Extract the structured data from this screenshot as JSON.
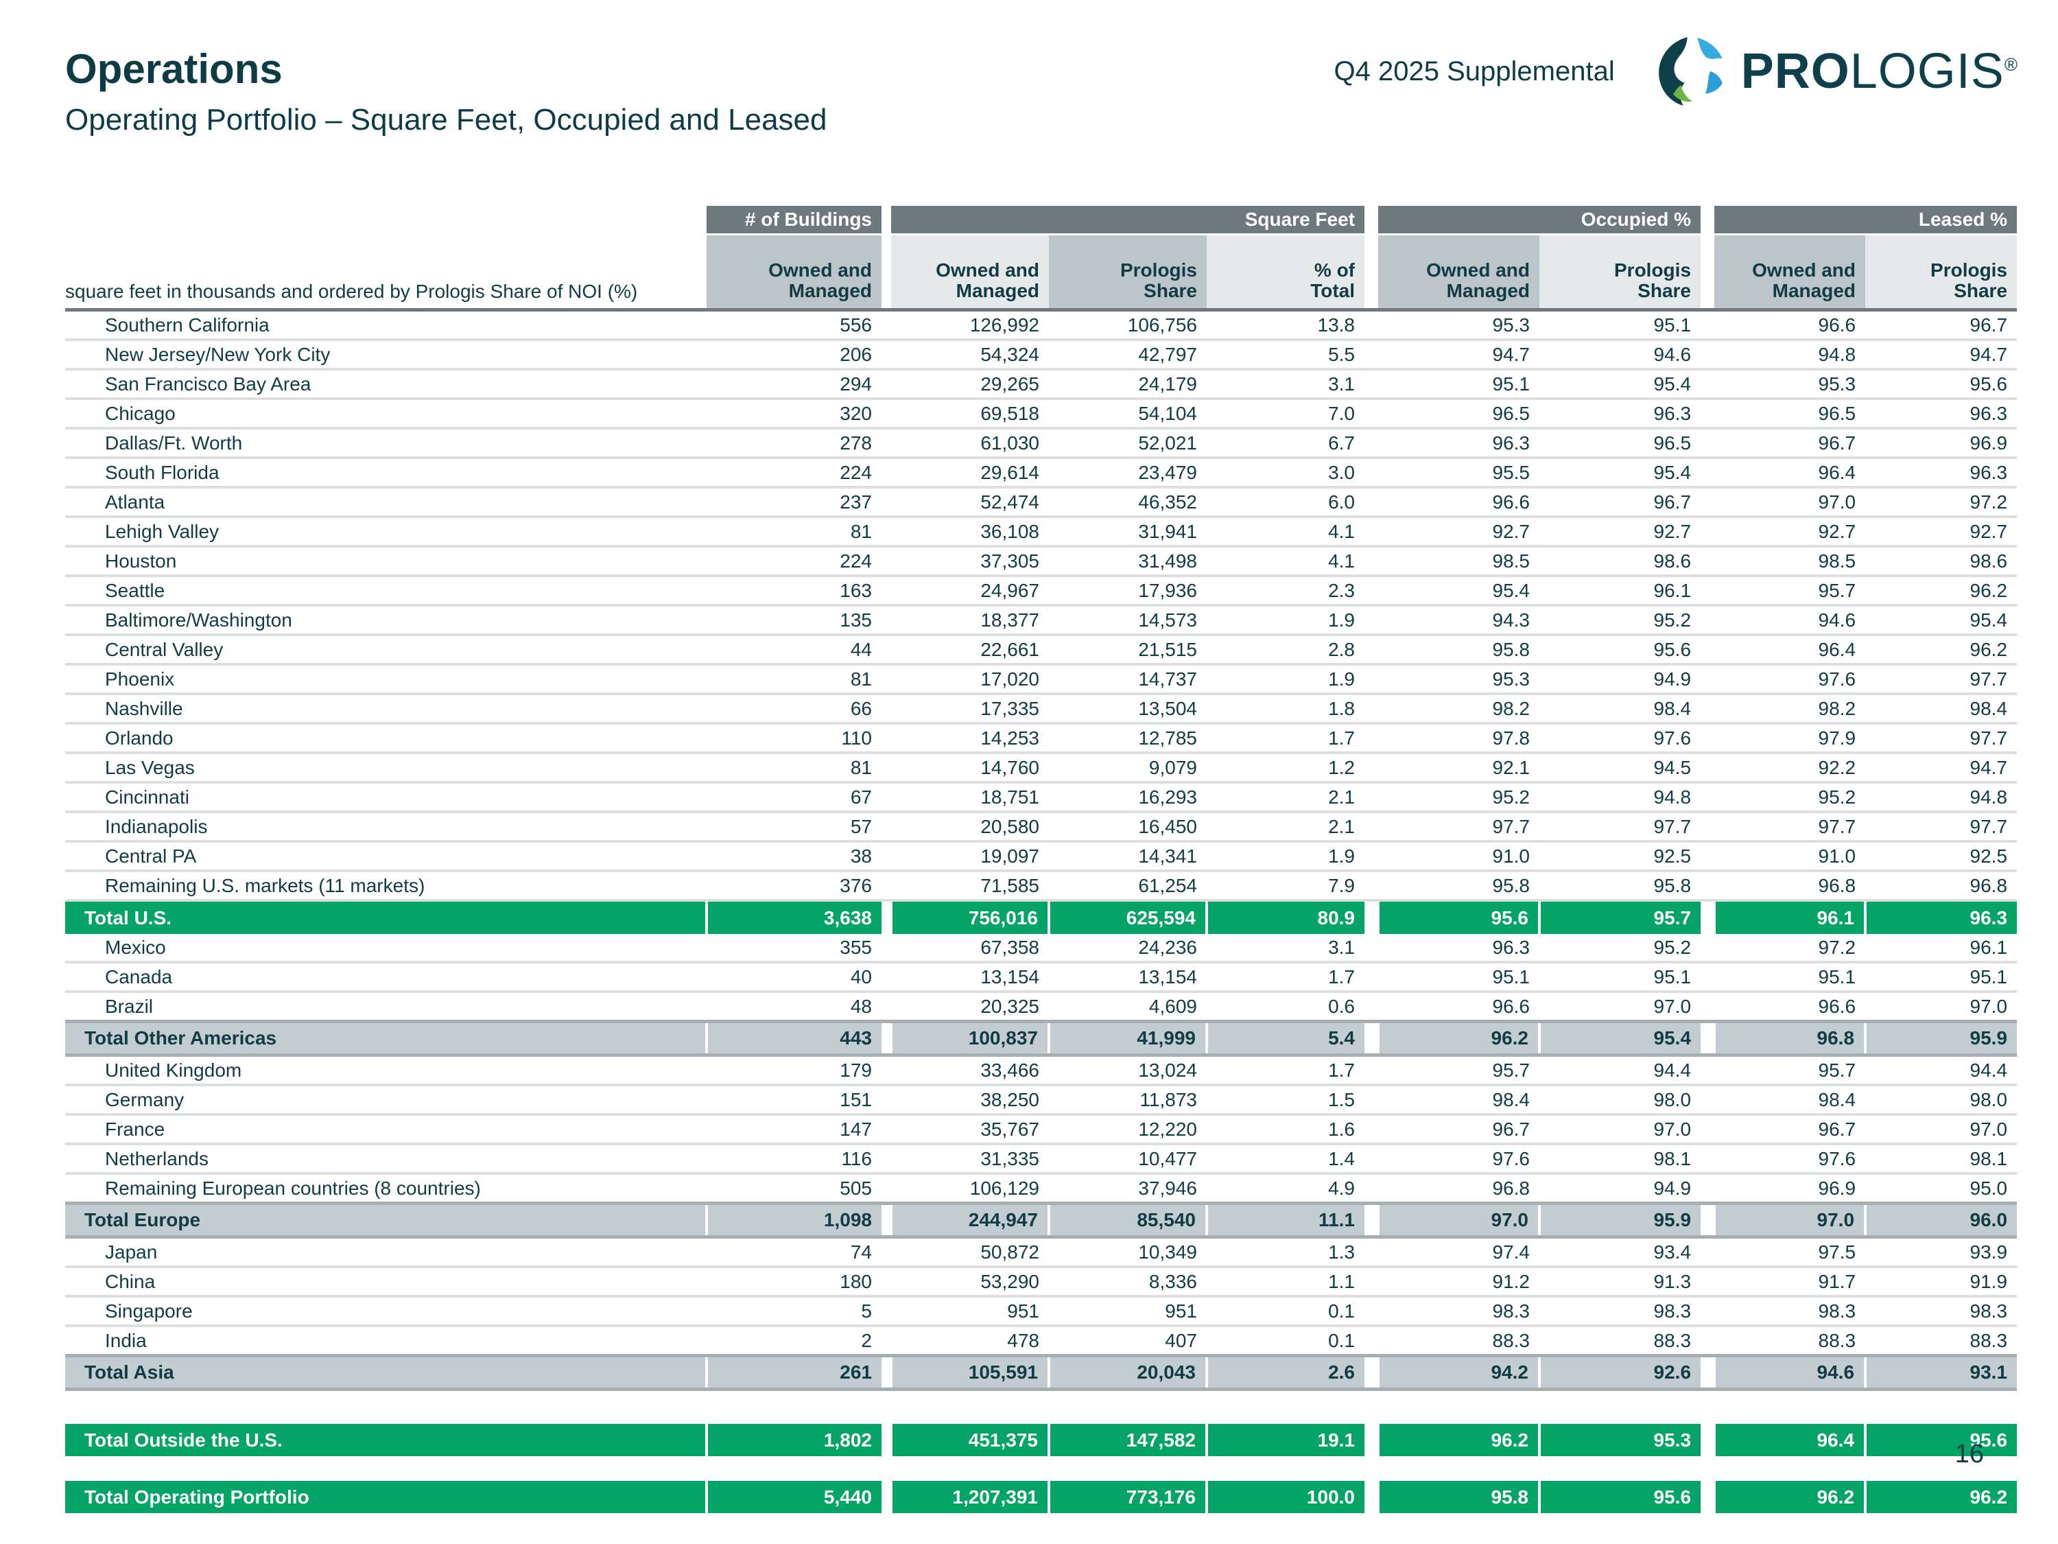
{
  "page": {
    "title": "Operations",
    "subtitle": "Operating Portfolio – Square Feet, Occupied and Leased",
    "supplemental": "Q4 2025 Supplemental",
    "brand_bold": "PRO",
    "brand_rest": "LOGIS",
    "registered": "®",
    "page_number": "16"
  },
  "colors": {
    "accent_green": "#04a466",
    "total_gray": "#c3ccd0",
    "header_bar": "#6e797d",
    "sub_gray": "#bcc5c9",
    "sub_light": "#e5e9ea",
    "text_dark_teal": "#113c46",
    "row_separator": "#dcdfe0",
    "logo_dark": "#0d4049",
    "logo_light_blue": "#36abe0",
    "logo_blue": "#2ba0d8",
    "logo_green": "#6cb744"
  },
  "table": {
    "note": "square feet in thousands and ordered by Prologis Share of NOI (%)",
    "groups": [
      {
        "label": "# of Buildings",
        "cols": 1
      },
      {
        "label": "Square Feet",
        "cols": 3
      },
      {
        "label": "Occupied %",
        "cols": 2
      },
      {
        "label": "Leased %",
        "cols": 2
      }
    ],
    "subheaders": [
      "Owned and\nManaged",
      "Owned and\nManaged",
      "Prologis\nShare",
      "% of\nTotal",
      "Owned and\nManaged",
      "Prologis\nShare",
      "Owned and\nManaged",
      "Prologis\nShare"
    ],
    "sub_shades": [
      "gray",
      "light",
      "gray",
      "light",
      "gray",
      "light",
      "gray",
      "light"
    ],
    "rows": [
      {
        "type": "market",
        "label": "Southern California",
        "values": [
          "556",
          "126,992",
          "106,756",
          "13.8",
          "95.3",
          "95.1",
          "96.6",
          "96.7"
        ]
      },
      {
        "type": "market",
        "label": "New Jersey/New York City",
        "values": [
          "206",
          "54,324",
          "42,797",
          "5.5",
          "94.7",
          "94.6",
          "94.8",
          "94.7"
        ]
      },
      {
        "type": "market",
        "label": "San Francisco Bay Area",
        "values": [
          "294",
          "29,265",
          "24,179",
          "3.1",
          "95.1",
          "95.4",
          "95.3",
          "95.6"
        ]
      },
      {
        "type": "market",
        "label": "Chicago",
        "values": [
          "320",
          "69,518",
          "54,104",
          "7.0",
          "96.5",
          "96.3",
          "96.5",
          "96.3"
        ]
      },
      {
        "type": "market",
        "label": "Dallas/Ft. Worth",
        "values": [
          "278",
          "61,030",
          "52,021",
          "6.7",
          "96.3",
          "96.5",
          "96.7",
          "96.9"
        ]
      },
      {
        "type": "market",
        "label": "South Florida",
        "values": [
          "224",
          "29,614",
          "23,479",
          "3.0",
          "95.5",
          "95.4",
          "96.4",
          "96.3"
        ]
      },
      {
        "type": "market",
        "label": "Atlanta",
        "values": [
          "237",
          "52,474",
          "46,352",
          "6.0",
          "96.6",
          "96.7",
          "97.0",
          "97.2"
        ]
      },
      {
        "type": "market",
        "label": "Lehigh Valley",
        "values": [
          "81",
          "36,108",
          "31,941",
          "4.1",
          "92.7",
          "92.7",
          "92.7",
          "92.7"
        ]
      },
      {
        "type": "market",
        "label": "Houston",
        "values": [
          "224",
          "37,305",
          "31,498",
          "4.1",
          "98.5",
          "98.6",
          "98.5",
          "98.6"
        ]
      },
      {
        "type": "market",
        "label": "Seattle",
        "values": [
          "163",
          "24,967",
          "17,936",
          "2.3",
          "95.4",
          "96.1",
          "95.7",
          "96.2"
        ]
      },
      {
        "type": "market",
        "label": "Baltimore/Washington",
        "values": [
          "135",
          "18,377",
          "14,573",
          "1.9",
          "94.3",
          "95.2",
          "94.6",
          "95.4"
        ]
      },
      {
        "type": "market",
        "label": "Central Valley",
        "values": [
          "44",
          "22,661",
          "21,515",
          "2.8",
          "95.8",
          "95.6",
          "96.4",
          "96.2"
        ]
      },
      {
        "type": "market",
        "label": "Phoenix",
        "values": [
          "81",
          "17,020",
          "14,737",
          "1.9",
          "95.3",
          "94.9",
          "97.6",
          "97.7"
        ]
      },
      {
        "type": "market",
        "label": "Nashville",
        "values": [
          "66",
          "17,335",
          "13,504",
          "1.8",
          "98.2",
          "98.4",
          "98.2",
          "98.4"
        ]
      },
      {
        "type": "market",
        "label": "Orlando",
        "values": [
          "110",
          "14,253",
          "12,785",
          "1.7",
          "97.8",
          "97.6",
          "97.9",
          "97.7"
        ]
      },
      {
        "type": "market",
        "label": "Las Vegas",
        "values": [
          "81",
          "14,760",
          "9,079",
          "1.2",
          "92.1",
          "94.5",
          "92.2",
          "94.7"
        ]
      },
      {
        "type": "market",
        "label": "Cincinnati",
        "values": [
          "67",
          "18,751",
          "16,293",
          "2.1",
          "95.2",
          "94.8",
          "95.2",
          "94.8"
        ]
      },
      {
        "type": "market",
        "label": "Indianapolis",
        "values": [
          "57",
          "20,580",
          "16,450",
          "2.1",
          "97.7",
          "97.7",
          "97.7",
          "97.7"
        ]
      },
      {
        "type": "market",
        "label": "Central PA",
        "values": [
          "38",
          "19,097",
          "14,341",
          "1.9",
          "91.0",
          "92.5",
          "91.0",
          "92.5"
        ]
      },
      {
        "type": "market",
        "label": "Remaining U.S. markets (11 markets)",
        "values": [
          "376",
          "71,585",
          "61,254",
          "7.9",
          "95.8",
          "95.8",
          "96.8",
          "96.8"
        ]
      },
      {
        "type": "total_green",
        "label": "Total U.S.",
        "values": [
          "3,638",
          "756,016",
          "625,594",
          "80.9",
          "95.6",
          "95.7",
          "96.1",
          "96.3"
        ]
      },
      {
        "type": "market",
        "label": "Mexico",
        "values": [
          "355",
          "67,358",
          "24,236",
          "3.1",
          "96.3",
          "95.2",
          "97.2",
          "96.1"
        ]
      },
      {
        "type": "market",
        "label": "Canada",
        "values": [
          "40",
          "13,154",
          "13,154",
          "1.7",
          "95.1",
          "95.1",
          "95.1",
          "95.1"
        ]
      },
      {
        "type": "market",
        "label": "Brazil",
        "values": [
          "48",
          "20,325",
          "4,609",
          "0.6",
          "96.6",
          "97.0",
          "96.6",
          "97.0"
        ]
      },
      {
        "type": "total_gray",
        "label": "Total Other Americas",
        "values": [
          "443",
          "100,837",
          "41,999",
          "5.4",
          "96.2",
          "95.4",
          "96.8",
          "95.9"
        ]
      },
      {
        "type": "market",
        "label": "United Kingdom",
        "values": [
          "179",
          "33,466",
          "13,024",
          "1.7",
          "95.7",
          "94.4",
          "95.7",
          "94.4"
        ]
      },
      {
        "type": "market",
        "label": "Germany",
        "values": [
          "151",
          "38,250",
          "11,873",
          "1.5",
          "98.4",
          "98.0",
          "98.4",
          "98.0"
        ]
      },
      {
        "type": "market",
        "label": "France",
        "values": [
          "147",
          "35,767",
          "12,220",
          "1.6",
          "96.7",
          "97.0",
          "96.7",
          "97.0"
        ]
      },
      {
        "type": "market",
        "label": "Netherlands",
        "values": [
          "116",
          "31,335",
          "10,477",
          "1.4",
          "97.6",
          "98.1",
          "97.6",
          "98.1"
        ]
      },
      {
        "type": "market",
        "label": "Remaining European countries (8 countries)",
        "values": [
          "505",
          "106,129",
          "37,946",
          "4.9",
          "96.8",
          "94.9",
          "96.9",
          "95.0"
        ]
      },
      {
        "type": "total_gray",
        "label": "Total Europe",
        "values": [
          "1,098",
          "244,947",
          "85,540",
          "11.1",
          "97.0",
          "95.9",
          "97.0",
          "96.0"
        ]
      },
      {
        "type": "market",
        "label": "Japan",
        "values": [
          "74",
          "50,872",
          "10,349",
          "1.3",
          "97.4",
          "93.4",
          "97.5",
          "93.9"
        ]
      },
      {
        "type": "market",
        "label": "China",
        "values": [
          "180",
          "53,290",
          "8,336",
          "1.1",
          "91.2",
          "91.3",
          "91.7",
          "91.9"
        ]
      },
      {
        "type": "market",
        "label": "Singapore",
        "values": [
          "5",
          "951",
          "951",
          "0.1",
          "98.3",
          "98.3",
          "98.3",
          "98.3"
        ]
      },
      {
        "type": "market",
        "label": "India",
        "values": [
          "2",
          "478",
          "407",
          "0.1",
          "88.3",
          "88.3",
          "88.3",
          "88.3"
        ]
      },
      {
        "type": "total_gray",
        "label": "Total Asia",
        "values": [
          "261",
          "105,591",
          "20,043",
          "2.6",
          "94.2",
          "92.6",
          "94.6",
          "93.1"
        ]
      },
      {
        "type": "spacer_lg",
        "label": "",
        "values": []
      },
      {
        "type": "total_green",
        "label": "Total Outside the U.S.",
        "values": [
          "1,802",
          "451,375",
          "147,582",
          "19.1",
          "96.2",
          "95.3",
          "96.4",
          "95.6"
        ]
      },
      {
        "type": "spacer_sm",
        "label": "",
        "values": []
      },
      {
        "type": "total_green",
        "label": "Total Operating Portfolio",
        "values": [
          "5,440",
          "1,207,391",
          "773,176",
          "100.0",
          "95.8",
          "95.6",
          "96.2",
          "96.2"
        ]
      }
    ]
  }
}
